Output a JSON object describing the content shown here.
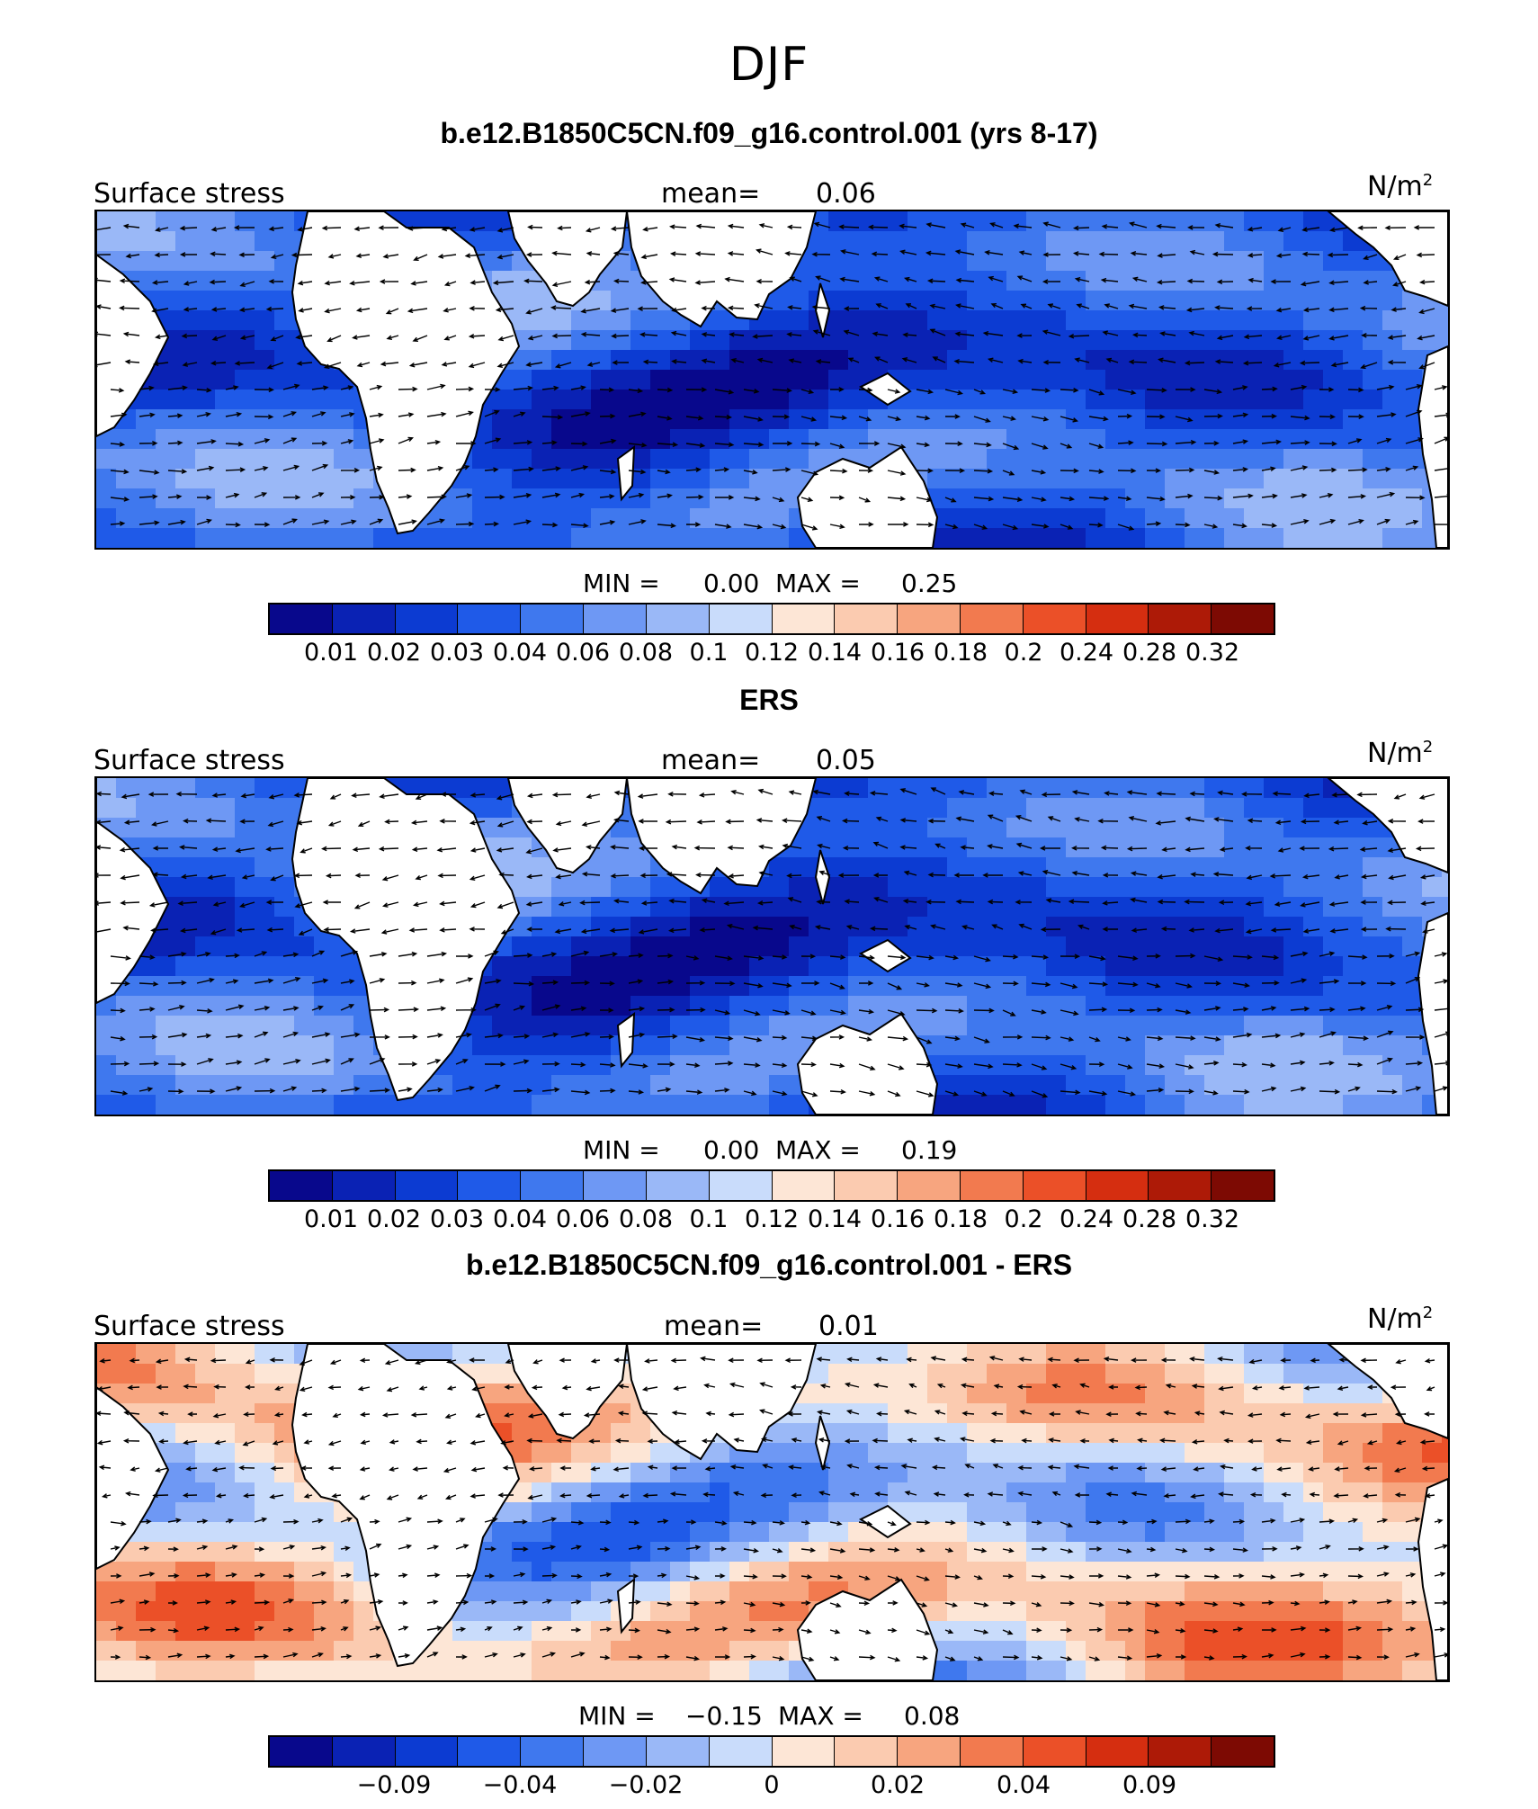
{
  "title": "DJF",
  "panels": [
    {
      "title": "b.e12.B1850C5CN.f09_g16.control.001 (yrs 8-17)",
      "left_label": "Surface stress",
      "mean_label": "mean=",
      "mean_value": "0.06",
      "units": "N/m",
      "units_sup": "2",
      "min_label": "MIN =",
      "min_value": "0.00",
      "max_label": "MAX =",
      "max_value": "0.25",
      "colorbar": [
        "#08088c",
        "#0a22b4",
        "#0c3bd2",
        "#1f5ae8",
        "#3f78ee",
        "#6e98f4",
        "#9ab8f7",
        "#c9dcfb",
        "#fde6d6",
        "#fbcbb0",
        "#f7a57f",
        "#f27a4f",
        "#eb5028",
        "#d52e10",
        "#ad1a07",
        "#7d0a03"
      ],
      "tick_labels": [
        "0.01",
        "0.02",
        "0.03",
        "0.04",
        "0.06",
        "0.08",
        "0.1",
        "0.12",
        "0.14",
        "0.16",
        "0.18",
        "0.2",
        "0.24",
        "0.28",
        "0.32"
      ],
      "style": "magnitude"
    },
    {
      "title": "ERS",
      "left_label": "Surface stress",
      "mean_label": "mean=",
      "mean_value": "0.05",
      "units": "N/m",
      "units_sup": "2",
      "min_label": "MIN =",
      "min_value": "0.00",
      "max_label": "MAX =",
      "max_value": "0.19",
      "colorbar": [
        "#08088c",
        "#0a22b4",
        "#0c3bd2",
        "#1f5ae8",
        "#3f78ee",
        "#6e98f4",
        "#9ab8f7",
        "#c9dcfb",
        "#fde6d6",
        "#fbcbb0",
        "#f7a57f",
        "#f27a4f",
        "#eb5028",
        "#d52e10",
        "#ad1a07",
        "#7d0a03"
      ],
      "tick_labels": [
        "0.01",
        "0.02",
        "0.03",
        "0.04",
        "0.06",
        "0.08",
        "0.1",
        "0.12",
        "0.14",
        "0.16",
        "0.18",
        "0.2",
        "0.24",
        "0.28",
        "0.32"
      ],
      "style": "magnitude"
    },
    {
      "title": "b.e12.B1850C5CN.f09_g16.control.001 - ERS",
      "left_label": "Surface stress",
      "mean_label": "mean=",
      "mean_value": "0.01",
      "units": "N/m",
      "units_sup": "2",
      "min_label": "MIN =",
      "min_value": "−0.15",
      "max_label": "MAX =",
      "max_value": "0.08",
      "colorbar": [
        "#08088c",
        "#0a22b4",
        "#0c3bd2",
        "#1f5ae8",
        "#3f78ee",
        "#6e98f4",
        "#9ab8f7",
        "#c9dcfb",
        "#fde6d6",
        "#fbcbb0",
        "#f7a57f",
        "#f27a4f",
        "#eb5028",
        "#d52e10",
        "#ad1a07",
        "#7d0a03"
      ],
      "tick_labels": [
        "",
        "−0.09",
        "",
        "−0.04",
        "",
        "−0.02",
        "",
        "0",
        "",
        "0.02",
        "",
        "0.04",
        "",
        "0.09",
        ""
      ],
      "style": "difference"
    }
  ]
}
